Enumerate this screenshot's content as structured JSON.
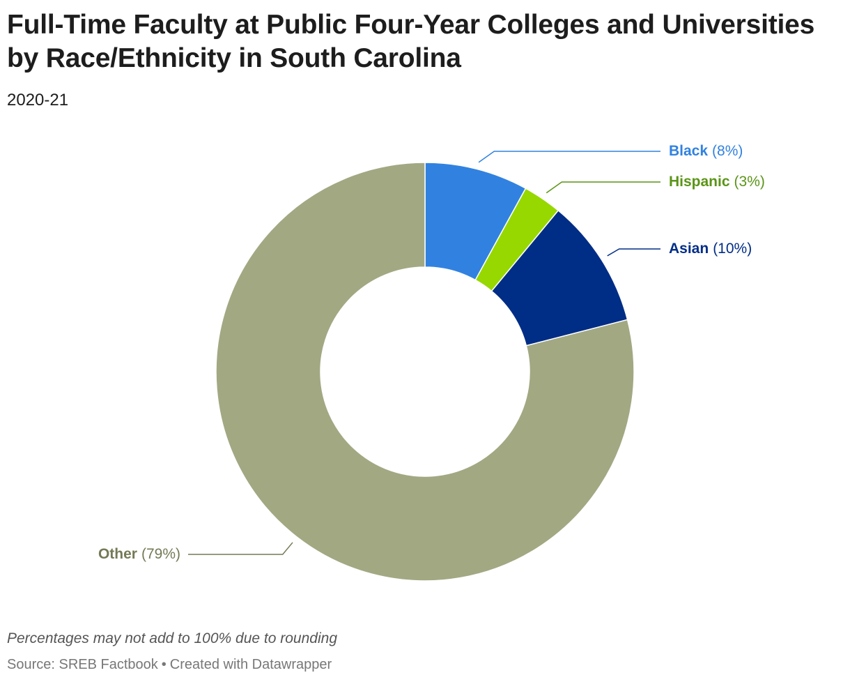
{
  "title": "Full-Time Faculty at Public Four-Year Colleges and Universities by Race/Ethnicity in South Carolina",
  "subtitle": "2020-21",
  "note": "Percentages may not add to 100% due to rounding",
  "footer": {
    "source": "Source: SREB Factbook",
    "separator": "•",
    "credit": "Created with Datawrapper"
  },
  "chart_data": {
    "type": "pie",
    "variant": "donut",
    "slices": [
      {
        "label": "Black",
        "value": 8,
        "display": "(8%)",
        "color": "#3182e0",
        "label_color": "#3182e0",
        "label_side": "right"
      },
      {
        "label": "Hispanic",
        "value": 3,
        "display": "(3%)",
        "color": "#96d800",
        "label_color": "#5a9416",
        "label_side": "right"
      },
      {
        "label": "Asian",
        "value": 10,
        "display": "(10%)",
        "color": "#002d86",
        "label_color": "#002d86",
        "label_side": "right"
      },
      {
        "label": "Other",
        "value": 79,
        "display": "(79%)",
        "color": "#a2a882",
        "label_color": "#737a55",
        "label_side": "left"
      }
    ]
  }
}
